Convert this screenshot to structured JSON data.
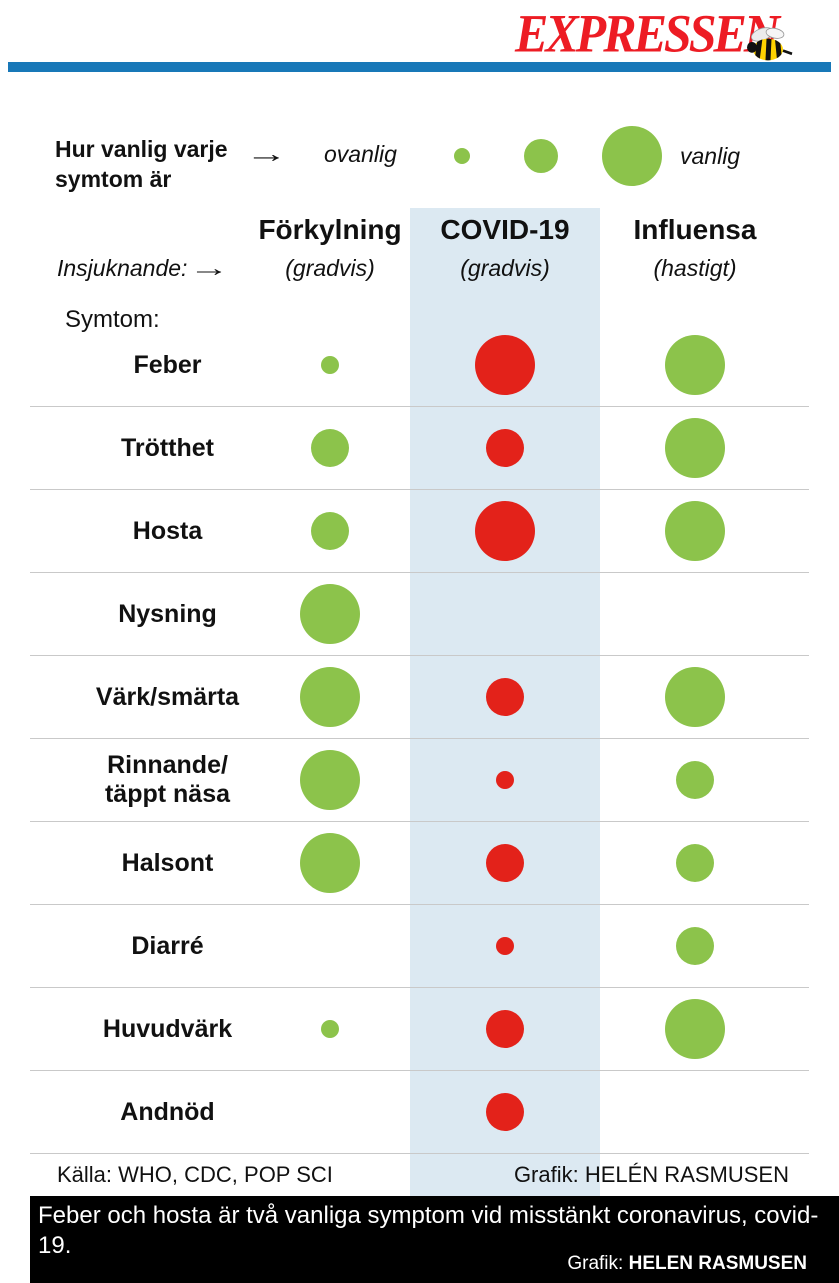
{
  "brand": {
    "logo_text": "EXPRESSEN"
  },
  "icons": {
    "arrow_right": "→",
    "wasp": "🐝"
  },
  "legend": {
    "title": "Hur vanlig varje\nsymtom är",
    "uncommon_label": "ovanlig",
    "common_label": "vanlig"
  },
  "labels": {
    "onset": "Insjuknande:",
    "symptoms": "Symtom:"
  },
  "footer": {
    "source": "Källa: WHO, CDC, POP SCI",
    "credit": "Grafik: HELÉN RASMUSEN"
  },
  "caption": {
    "text": "Feber och hosta är två vanliga symptom vid misstänkt coronavirus, covid-19.",
    "credit_label": "Grafik:",
    "credit_name": "HELEN RASMUSEN"
  },
  "colors": {
    "brand_red": "#ed1c24",
    "bar_blue": "#1878b8",
    "band_blue": "#dce9f2",
    "green": "#8cc34b",
    "red": "#e3221a",
    "divider": "#c9c9c9"
  },
  "chart_data": {
    "type": "bubble-matrix",
    "title": "Hur vanlig varje symtom är",
    "legend": {
      "min_label": "ovanlig",
      "max_label": "vanlig"
    },
    "size_scale": {
      "0": "none",
      "1": "small (ovanlig)",
      "2": "medium",
      "3": "large (vanlig)"
    },
    "highlighted_column": "COVID-19",
    "columns": [
      {
        "name": "Förkylning",
        "onset": "(gradvis)"
      },
      {
        "name": "COVID-19",
        "onset": "(gradvis)"
      },
      {
        "name": "Influensa",
        "onset": "(hastigt)"
      }
    ],
    "rows": [
      {
        "label": "Feber",
        "values": [
          1,
          3,
          3
        ]
      },
      {
        "label": "Trötthet",
        "values": [
          2,
          2,
          3
        ]
      },
      {
        "label": "Hosta",
        "values": [
          2,
          3,
          3
        ]
      },
      {
        "label": "Nysning",
        "values": [
          3,
          0,
          0
        ]
      },
      {
        "label": "Värk/smärta",
        "values": [
          3,
          2,
          3
        ]
      },
      {
        "label": "Rinnande/\ntäppt näsa",
        "values": [
          3,
          1,
          2
        ]
      },
      {
        "label": "Halsont",
        "values": [
          3,
          2,
          2
        ]
      },
      {
        "label": "Diarré",
        "values": [
          0,
          1,
          2
        ]
      },
      {
        "label": "Huvudvärk",
        "values": [
          1,
          2,
          3
        ]
      },
      {
        "label": "Andnöd",
        "values": [
          0,
          2,
          0
        ]
      }
    ]
  }
}
